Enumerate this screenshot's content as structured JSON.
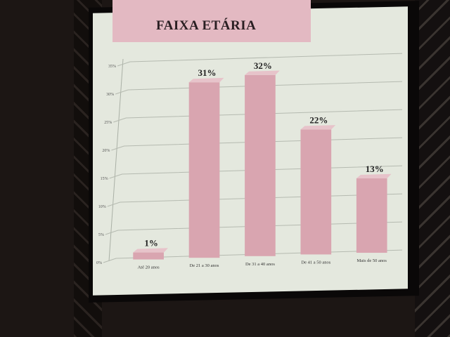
{
  "chart_data": {
    "type": "bar",
    "title": "FAIXA ETÁRIA",
    "categories": [
      "Até 20 anos",
      "De 21 a 30 anos",
      "De 31 a 40 anos",
      "De 41 a 50 anos",
      "Mais de 50 anos"
    ],
    "values": [
      1,
      31,
      32,
      22,
      13
    ],
    "data_labels": [
      "1%",
      "31%",
      "32%",
      "22%",
      "13%"
    ],
    "yticks": [
      "0%",
      "5%",
      "10%",
      "15%",
      "20%",
      "25%",
      "30%",
      "35%"
    ],
    "ylim": [
      0,
      35
    ],
    "grid": true,
    "bar_color": "#d9a5b0"
  }
}
